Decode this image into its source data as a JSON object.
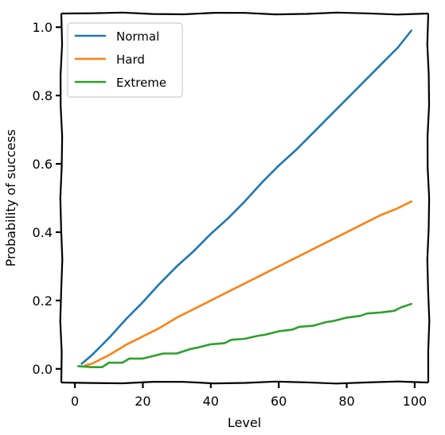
{
  "chart_data": {
    "type": "line",
    "xlabel": "Level",
    "ylabel": "Probability of success",
    "xlim": [
      -4,
      104
    ],
    "ylim": [
      -0.04,
      1.04
    ],
    "xticks": [
      0,
      20,
      40,
      60,
      80,
      100
    ],
    "yticks": [
      0.0,
      0.2,
      0.4,
      0.6,
      0.8,
      1.0
    ],
    "xtick_labels": [
      "0",
      "20",
      "40",
      "60",
      "80",
      "100"
    ],
    "ytick_labels": [
      "0.0",
      "0.2",
      "0.4",
      "0.6",
      "0.8",
      "1.0"
    ],
    "legend_position": "top-left",
    "grid": false,
    "style": "xkcd",
    "series": [
      {
        "name": "Normal",
        "color": "#1f77b4",
        "x": [
          2,
          5,
          10,
          15,
          20,
          25,
          30,
          35,
          40,
          45,
          50,
          55,
          60,
          65,
          70,
          75,
          80,
          85,
          90,
          95,
          99
        ],
        "y": [
          0.015,
          0.04,
          0.09,
          0.145,
          0.195,
          0.25,
          0.3,
          0.345,
          0.395,
          0.44,
          0.49,
          0.545,
          0.595,
          0.64,
          0.69,
          0.74,
          0.79,
          0.84,
          0.89,
          0.94,
          0.99
        ]
      },
      {
        "name": "Hard",
        "color": "#ff7f0e",
        "x": [
          3,
          5,
          10,
          15,
          20,
          25,
          30,
          35,
          40,
          45,
          50,
          55,
          60,
          65,
          70,
          75,
          80,
          85,
          90,
          95,
          99
        ],
        "y": [
          0.01,
          0.015,
          0.04,
          0.07,
          0.095,
          0.12,
          0.15,
          0.175,
          0.2,
          0.225,
          0.25,
          0.275,
          0.3,
          0.325,
          0.35,
          0.375,
          0.4,
          0.425,
          0.45,
          0.47,
          0.49
        ]
      },
      {
        "name": "Extreme",
        "color": "#2ca02c",
        "x": [
          1,
          5,
          8,
          10,
          14,
          16,
          20,
          24,
          26,
          30,
          34,
          36,
          40,
          44,
          46,
          50,
          54,
          56,
          60,
          64,
          66,
          70,
          74,
          76,
          80,
          84,
          86,
          90,
          94,
          96,
          99
        ],
        "y": [
          0.008,
          0.005,
          0.005,
          0.018,
          0.018,
          0.03,
          0.03,
          0.04,
          0.045,
          0.045,
          0.058,
          0.062,
          0.072,
          0.075,
          0.085,
          0.088,
          0.097,
          0.1,
          0.11,
          0.115,
          0.123,
          0.126,
          0.137,
          0.14,
          0.15,
          0.155,
          0.162,
          0.165,
          0.17,
          0.18,
          0.19
        ]
      }
    ]
  }
}
